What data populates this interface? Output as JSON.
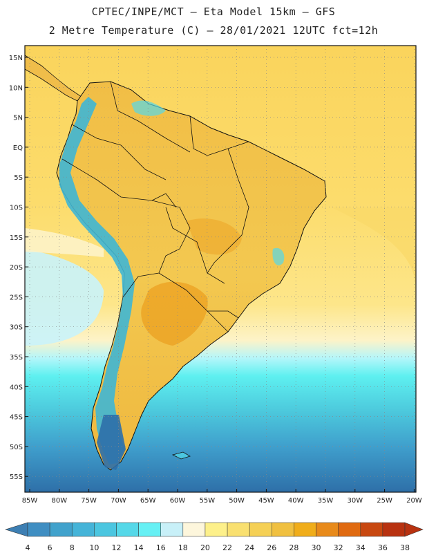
{
  "header": {
    "line1": "CPTEC/INPE/MCT –  Eta Model 15km – GFS",
    "line2": "2 Metre Temperature (C) – 28/01/2021 12UTC fct=12h"
  },
  "axes": {
    "lat_labels": [
      "15N",
      "10N",
      "5N",
      "EQ",
      "5S",
      "10S",
      "15S",
      "20S",
      "25S",
      "30S",
      "35S",
      "40S",
      "45S",
      "50S",
      "55S"
    ],
    "lon_labels": [
      "85W",
      "80W",
      "75W",
      "70W",
      "65W",
      "60W",
      "55W",
      "50W",
      "45W",
      "40W",
      "35W",
      "30W",
      "25W",
      "20W"
    ]
  },
  "colorbar": {
    "ticks": [
      "4",
      "6",
      "8",
      "10",
      "12",
      "14",
      "16",
      "18",
      "20",
      "22",
      "24",
      "26",
      "28",
      "30",
      "32",
      "34",
      "36",
      "38"
    ],
    "colors": [
      "#3d7fb3",
      "#3f8ec2",
      "#41a2cc",
      "#45b4d8",
      "#4bc6e0",
      "#55d8e8",
      "#66f0f4",
      "#c8f0f8",
      "#fdf6dc",
      "#fdf08a",
      "#f9e070",
      "#f5d055",
      "#f0c040",
      "#f0ad1a",
      "#e88a1a",
      "#e06a10",
      "#c84810",
      "#b83210"
    ]
  },
  "map_colors": {
    "ocean_north": "#fad45c",
    "ocean_mid": "#fde27a",
    "ocean_band": "#fdf0b0",
    "ocean_cyan": "#5ef0f0",
    "ocean_teal": "#4cc8dc",
    "ocean_blue": "#3fa2cc",
    "ocean_deep": "#2e6fa8",
    "land_main": "#f3c64e",
    "land_hot": "#eca426",
    "andes_cool": "#3fb6d4",
    "pacific_pale": "#c9f3fb"
  }
}
